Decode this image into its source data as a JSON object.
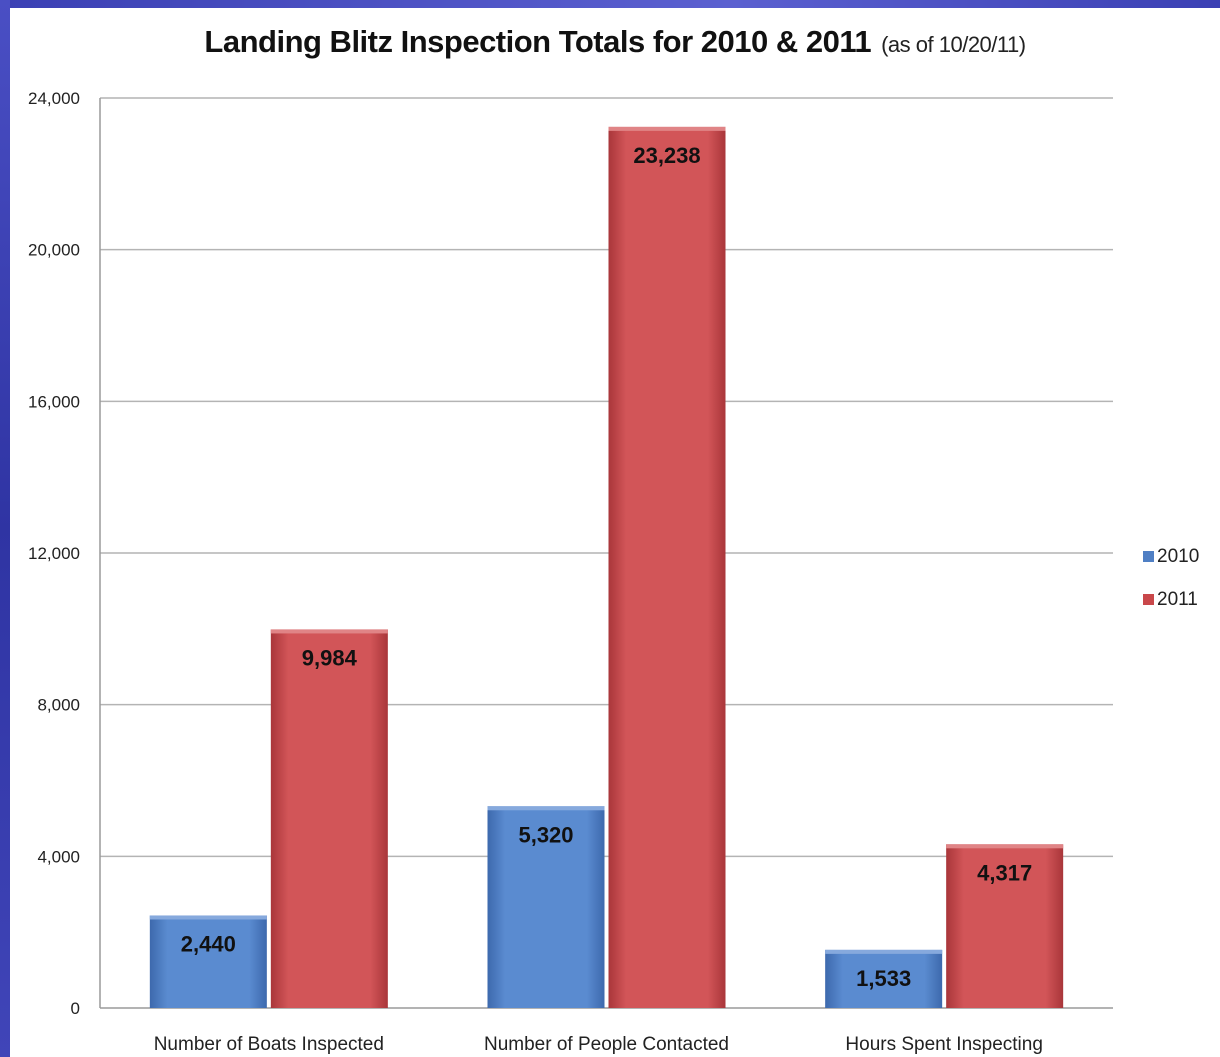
{
  "chart_data": {
    "type": "bar",
    "title": "Landing Blitz Inspection Totals for 2010 & 2011",
    "subtitle": "(as of 10/20/11)",
    "categories": [
      "Number of Boats Inspected",
      "Number of People Contacted",
      "Hours Spent Inspecting"
    ],
    "series": [
      {
        "name": "2010",
        "color": "#4f7fc4",
        "values": [
          2440,
          5320,
          1533
        ],
        "labels": [
          "2,440",
          "5,320",
          "1,533"
        ]
      },
      {
        "name": "2011",
        "color": "#c9474a",
        "values": [
          9984,
          23238,
          4317
        ],
        "labels": [
          "9,984",
          "23,238",
          "4,317"
        ]
      }
    ],
    "ylim": [
      0,
      24000
    ],
    "yticks": [
      0,
      4000,
      8000,
      12000,
      16000,
      20000,
      24000
    ],
    "ytick_labels": [
      "0",
      "4,000",
      "8,000",
      "12,000",
      "16,000",
      "20,000",
      "24,000"
    ],
    "grid": true,
    "legend_position": "right",
    "xlabel": "",
    "ylabel": ""
  }
}
